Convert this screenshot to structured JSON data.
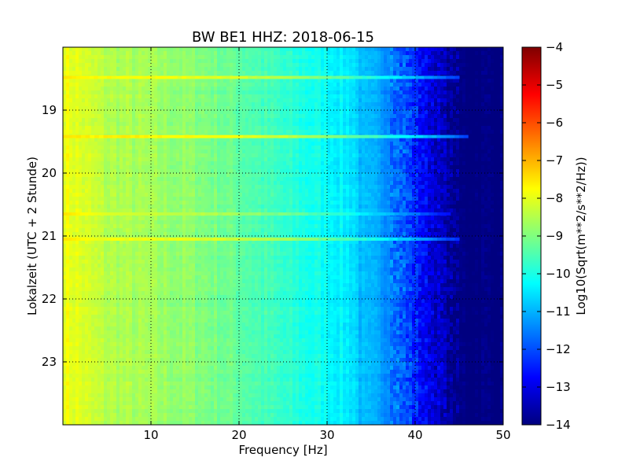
{
  "chart_data": {
    "type": "heatmap",
    "title": "BW BE1 HHZ: 2018-06-15",
    "xlabel": "Frequency [Hz]",
    "ylabel": "Lokalzeit (UTC + 2 Stunde)",
    "xlim": [
      0,
      50
    ],
    "ylim": [
      18,
      24
    ],
    "y_inverted": true,
    "x_ticks": [
      "10",
      "20",
      "30",
      "40",
      "50"
    ],
    "y_ticks": [
      "19",
      "20",
      "21",
      "22",
      "23"
    ],
    "grid": true,
    "colormap": "jet",
    "colorbar": {
      "label": "Log10(Sqrt(m**2/s**2/Hz))",
      "range": [
        -14,
        -4
      ],
      "ticks": [
        "-4",
        "-5",
        "-6",
        "-7",
        "-8",
        "-9",
        "-10",
        "-11",
        "-12",
        "-13",
        "-14"
      ]
    },
    "spectrum_profile": [
      {
        "freq_hz": 0.5,
        "value": -7.9
      },
      {
        "freq_hz": 2,
        "value": -8.1
      },
      {
        "freq_hz": 5,
        "value": -8.5
      },
      {
        "freq_hz": 10,
        "value": -8.7
      },
      {
        "freq_hz": 15,
        "value": -8.9
      },
      {
        "freq_hz": 20,
        "value": -9.3
      },
      {
        "freq_hz": 25,
        "value": -9.8
      },
      {
        "freq_hz": 30,
        "value": -10.2
      },
      {
        "freq_hz": 33,
        "value": -10.5
      },
      {
        "freq_hz": 34,
        "value": -11.0
      },
      {
        "freq_hz": 37,
        "value": -11.3
      },
      {
        "freq_hz": 39,
        "value": -12.0
      },
      {
        "freq_hz": 41,
        "value": -12.8
      },
      {
        "freq_hz": 43,
        "value": -13.4
      },
      {
        "freq_hz": 45,
        "value": -14.0
      },
      {
        "freq_hz": 50,
        "value": -14.0
      }
    ],
    "bright_bands": [
      {
        "time_h": 18.48,
        "max_freq_hz": 45,
        "value": -7.8
      },
      {
        "time_h": 19.42,
        "max_freq_hz": 46,
        "value": -7.6
      },
      {
        "time_h": 20.65,
        "max_freq_hz": 44,
        "value": -8.3
      },
      {
        "time_h": 21.05,
        "max_freq_hz": 45,
        "value": -7.9
      }
    ]
  }
}
